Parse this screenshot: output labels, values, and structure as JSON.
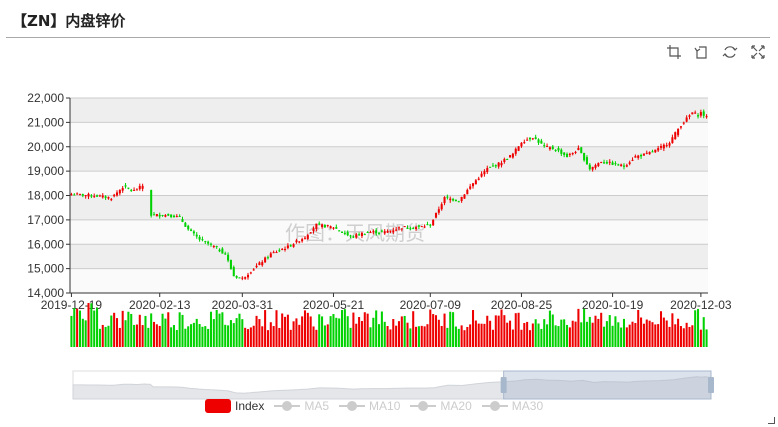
{
  "header": {
    "title": "【ZN】内盘锌价"
  },
  "toolbox": [
    {
      "name": "zoom-icon"
    },
    {
      "name": "zoom-reset-icon"
    },
    {
      "name": "restore-icon"
    },
    {
      "name": "save-image-icon"
    }
  ],
  "watermark": "作图：天风期货",
  "colors": {
    "up": "#ee0000",
    "down": "#00d100",
    "grid_band": "#eeeeee",
    "axis": "#333333"
  },
  "chart_data": {
    "type": "candlestick",
    "title": "【ZN】内盘锌价",
    "y_ticks": [
      "22,000",
      "21,000",
      "20,000",
      "19,000",
      "18,000",
      "17,000",
      "16,000",
      "15,000",
      "14,000"
    ],
    "ylim": [
      14000,
      22000
    ],
    "x_ticks": [
      "2019-12-19",
      "2020-02-13",
      "2020-03-31",
      "2020-05-21",
      "2020-07-09",
      "2020-08-25",
      "2020-10-19",
      "2020-12-03"
    ],
    "x_tick_index": [
      0,
      31,
      60,
      92,
      126,
      158,
      190,
      221
    ],
    "n_points": 224,
    "anchors": [
      [
        0,
        18050
      ],
      [
        8,
        18000
      ],
      [
        14,
        17900
      ],
      [
        18,
        18350
      ],
      [
        22,
        18200
      ],
      [
        25,
        18400
      ],
      [
        27,
        18300
      ],
      [
        28,
        17200
      ],
      [
        34,
        17200
      ],
      [
        38,
        17100
      ],
      [
        41,
        16600
      ],
      [
        45,
        16200
      ],
      [
        50,
        15900
      ],
      [
        54,
        15600
      ],
      [
        57,
        14700
      ],
      [
        60,
        14600
      ],
      [
        64,
        15000
      ],
      [
        70,
        15600
      ],
      [
        76,
        15900
      ],
      [
        82,
        16300
      ],
      [
        86,
        16800
      ],
      [
        92,
        16700
      ],
      [
        98,
        16300
      ],
      [
        104,
        16500
      ],
      [
        110,
        16500
      ],
      [
        116,
        16700
      ],
      [
        122,
        16700
      ],
      [
        126,
        16800
      ],
      [
        131,
        17900
      ],
      [
        136,
        17800
      ],
      [
        141,
        18500
      ],
      [
        146,
        19100
      ],
      [
        150,
        19300
      ],
      [
        155,
        19700
      ],
      [
        158,
        20200
      ],
      [
        162,
        20400
      ],
      [
        166,
        20000
      ],
      [
        170,
        19900
      ],
      [
        174,
        19600
      ],
      [
        178,
        19900
      ],
      [
        182,
        19100
      ],
      [
        186,
        19400
      ],
      [
        190,
        19300
      ],
      [
        194,
        19200
      ],
      [
        198,
        19600
      ],
      [
        202,
        19700
      ],
      [
        206,
        19900
      ],
      [
        210,
        20200
      ],
      [
        214,
        20900
      ],
      [
        218,
        21400
      ],
      [
        220,
        21300
      ],
      [
        221,
        21400
      ],
      [
        223,
        21200
      ]
    ],
    "gaps": [
      [
        26,
        27
      ],
      [
        27,
        28
      ]
    ],
    "legend": [
      {
        "name": "Index",
        "active": true,
        "color": "#ee0000"
      },
      {
        "name": "MA5",
        "active": false
      },
      {
        "name": "MA10",
        "active": false
      },
      {
        "name": "MA20",
        "active": false
      },
      {
        "name": "MA30",
        "active": false
      }
    ],
    "legend_position": "bottom-center",
    "data_zoom": {
      "start_fraction": 0.675,
      "end_fraction": 1.0
    },
    "grid": true
  }
}
